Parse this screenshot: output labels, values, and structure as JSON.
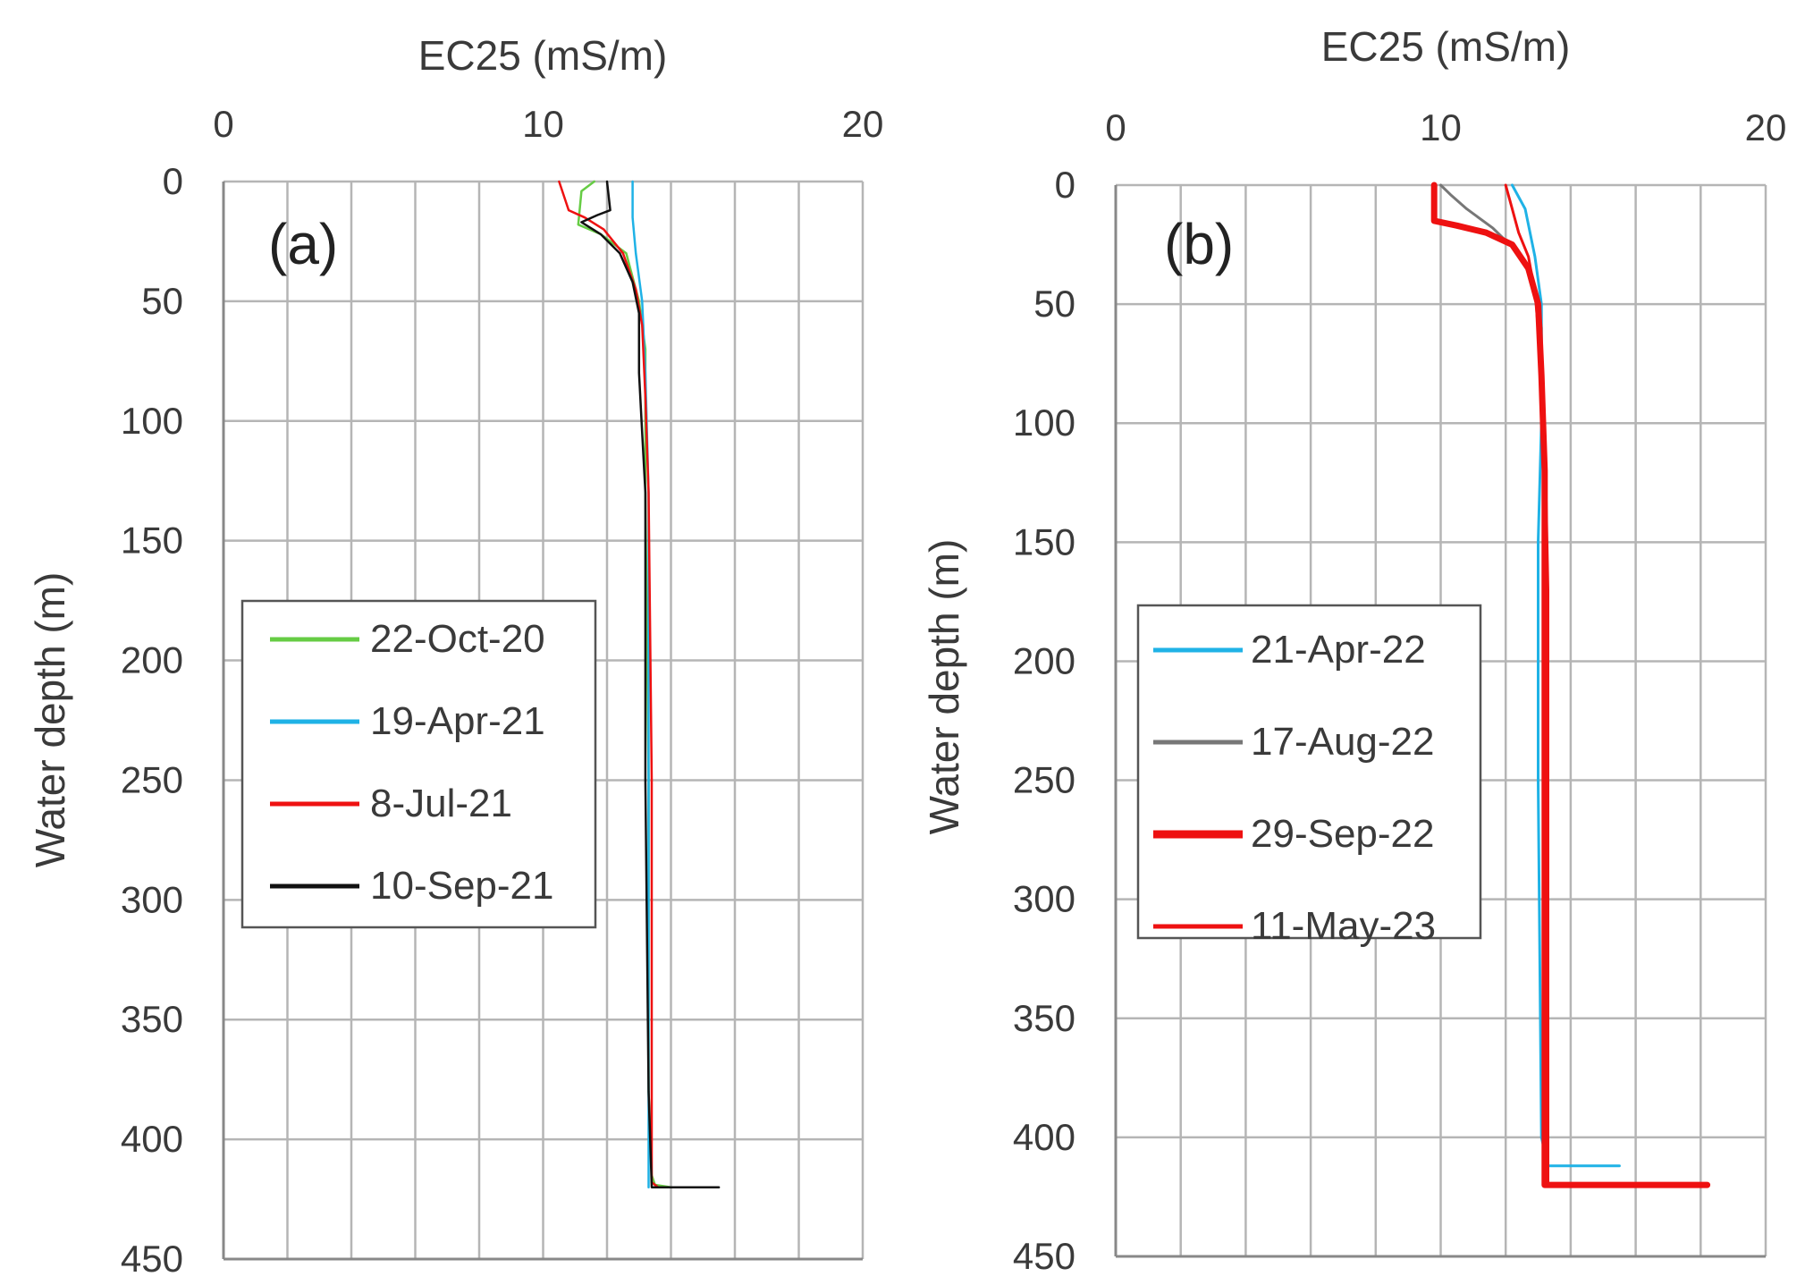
{
  "chart_data": [
    {
      "type": "line",
      "panel_label": "(a)",
      "title": "",
      "xlabel": "EC25 (mS/m)",
      "ylabel": "Water depth (m)",
      "x_axis_position": "top",
      "y_axis_inverted": true,
      "xlim": [
        0,
        20
      ],
      "ylim": [
        0,
        450
      ],
      "x_ticks": [
        0,
        10,
        20
      ],
      "y_ticks": [
        0,
        50,
        100,
        150,
        200,
        250,
        300,
        350,
        400,
        450
      ],
      "x_gridlines": [
        0,
        2,
        4,
        6,
        8,
        10,
        12,
        14,
        16,
        18,
        20
      ],
      "y_gridlines": [
        0,
        50,
        100,
        150,
        200,
        250,
        300,
        350,
        400,
        450
      ],
      "grid": true,
      "legend_position": "center-left",
      "series": [
        {
          "name": "22-Oct-20",
          "color": "#66cc44",
          "width": 2.5,
          "x": [
            11.6,
            11.2,
            11.1,
            11.8,
            12.6,
            13.0,
            13.2,
            13.2,
            13.3,
            13.3,
            13.4,
            13.5,
            14.0
          ],
          "y": [
            0,
            4,
            18,
            22,
            30,
            50,
            70,
            130,
            250,
            380,
            415,
            419,
            420
          ]
        },
        {
          "name": "19-Apr-21",
          "color": "#1fb2e6",
          "width": 2.5,
          "x": [
            12.8,
            12.8,
            12.9,
            13.1,
            13.2,
            13.3,
            13.3,
            13.3
          ],
          "y": [
            0,
            15,
            30,
            50,
            80,
            130,
            300,
            420
          ]
        },
        {
          "name": "8-Jul-21",
          "color": "#ee1111",
          "width": 2.5,
          "x": [
            10.5,
            10.8,
            11.3,
            11.9,
            12.5,
            12.9,
            13.1,
            13.2,
            13.3,
            13.4,
            13.4,
            13.4,
            13.6,
            14.0
          ],
          "y": [
            0,
            12,
            15,
            20,
            30,
            45,
            60,
            90,
            130,
            250,
            400,
            418,
            420,
            420
          ]
        },
        {
          "name": "10-Sep-21",
          "color": "#111111",
          "width": 2.5,
          "x": [
            12.0,
            12.1,
            11.7,
            11.2,
            11.8,
            12.4,
            12.8,
            13.0,
            13.0,
            13.1,
            13.2,
            13.2,
            13.3,
            13.4,
            15.5
          ],
          "y": [
            0,
            12,
            14,
            17,
            22,
            30,
            42,
            55,
            80,
            105,
            130,
            250,
            380,
            420,
            420
          ]
        }
      ]
    },
    {
      "type": "line",
      "panel_label": "(b)",
      "title": "",
      "xlabel": "EC25 (mS/m)",
      "ylabel": "Water depth (m)",
      "x_axis_position": "top",
      "y_axis_inverted": true,
      "xlim": [
        0,
        20
      ],
      "ylim": [
        0,
        450
      ],
      "x_ticks": [
        0,
        10,
        20
      ],
      "y_ticks": [
        0,
        50,
        100,
        150,
        200,
        250,
        300,
        350,
        400,
        450
      ],
      "x_gridlines": [
        0,
        2,
        4,
        6,
        8,
        10,
        12,
        14,
        16,
        18,
        20
      ],
      "y_gridlines": [
        0,
        50,
        100,
        150,
        200,
        250,
        300,
        350,
        400,
        450
      ],
      "grid": true,
      "legend_position": "center-left",
      "series": [
        {
          "name": "21-Apr-22",
          "color": "#1fb2e6",
          "width": 3,
          "x": [
            12.2,
            12.6,
            12.9,
            13.1,
            13.1,
            13.0,
            13.0,
            13.1,
            13.3,
            13.3,
            15.5
          ],
          "y": [
            0,
            10,
            30,
            50,
            100,
            150,
            250,
            400,
            412,
            412,
            412
          ]
        },
        {
          "name": "17-Aug-22",
          "color": "#777777",
          "width": 3,
          "x": [
            10.0,
            10.3,
            10.8,
            11.6,
            12.5,
            13.0,
            13.1,
            13.1
          ],
          "y": [
            0,
            4,
            10,
            18,
            30,
            48,
            60,
            100
          ]
        },
        {
          "name": "29-Sep-22",
          "color": "#ee1111",
          "width": 7,
          "x": [
            9.8,
            9.8,
            10.5,
            11.4,
            12.2,
            12.7,
            13.0,
            13.1,
            13.2,
            13.2,
            13.2,
            18.2
          ],
          "y": [
            0,
            15,
            17,
            20,
            25,
            35,
            50,
            80,
            120,
            300,
            420,
            420
          ]
        },
        {
          "name": "11-May-23",
          "color": "#ee1111",
          "width": 3,
          "x": [
            12.0,
            12.2,
            12.4,
            12.7,
            12.9,
            13.0,
            13.2,
            13.3,
            13.3
          ],
          "y": [
            0,
            10,
            20,
            30,
            45,
            60,
            100,
            170,
            420
          ]
        }
      ]
    }
  ]
}
